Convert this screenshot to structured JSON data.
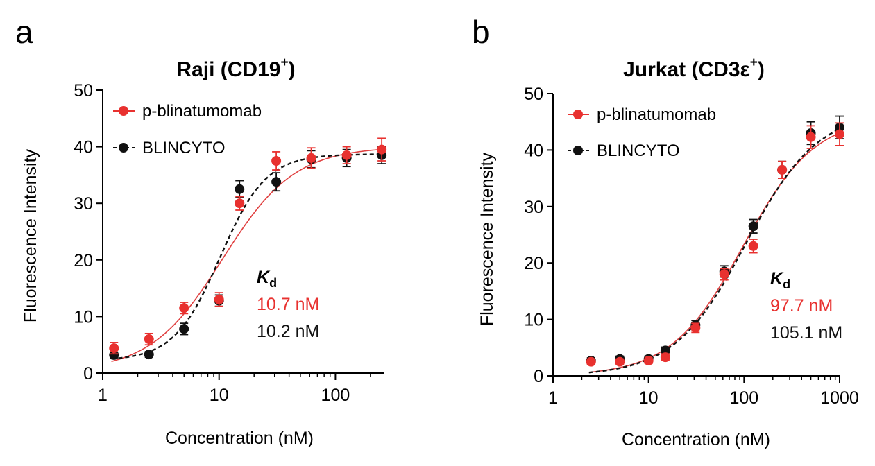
{
  "colors": {
    "red": "#e8312f",
    "black": "#111111",
    "curve_red": "#e04040"
  },
  "chart_data": [
    {
      "type": "scatter",
      "panel": "a",
      "title": "Raji (CD19",
      "title_sup": "+",
      "title_end": ")",
      "xlabel": "Concentration (nM)",
      "ylabel": "Fluorescence Intensity",
      "xscale": "log",
      "xlim": [
        1,
        260
      ],
      "ylim": [
        0,
        50
      ],
      "xticks": [
        1,
        10,
        100
      ],
      "xtick_labels": [
        "1",
        "10",
        "100"
      ],
      "yticks": [
        0,
        10,
        20,
        30,
        40,
        50
      ],
      "ytick_labels": [
        "0",
        "10",
        "20",
        "30",
        "40",
        "50"
      ],
      "legend_position": "top-left",
      "kd_label": "K",
      "kd_sub": "d",
      "series": [
        {
          "name": "p-blinatumomab",
          "color": "#e8312f",
          "line_style": "solid",
          "kd": 10.7,
          "kd_text": "10.7 nM",
          "top": 40,
          "bottom": 0.3,
          "hill": 1.4,
          "x": [
            1.25,
            2.5,
            5,
            10,
            15,
            31,
            62,
            125,
            250
          ],
          "y": [
            4.4,
            6.0,
            11.5,
            13.0,
            30.0,
            37.5,
            38.0,
            38.5,
            39.5
          ],
          "err": [
            1.0,
            1.0,
            1.0,
            1.2,
            1.2,
            1.6,
            1.8,
            1.5,
            2.0
          ]
        },
        {
          "name": "BLINCYTO",
          "color": "#111111",
          "line_style": "dashed",
          "kd": 10.2,
          "kd_text": "10.2 nM",
          "top": 38.7,
          "bottom": 2.2,
          "hill": 2.2,
          "x": [
            1.25,
            2.5,
            5,
            10,
            15,
            31,
            62,
            125,
            250
          ],
          "y": [
            3.2,
            3.3,
            7.8,
            12.8,
            32.5,
            33.8,
            37.8,
            38.0,
            38.5
          ],
          "err": [
            0.5,
            0.5,
            1.0,
            1.0,
            1.5,
            1.6,
            1.5,
            1.5,
            1.5
          ]
        }
      ]
    },
    {
      "type": "scatter",
      "panel": "b",
      "title": "Jurkat (CD3ε",
      "title_sup": "+",
      "title_end": ")",
      "xlabel": "Concentration (nM)",
      "ylabel": "Fluorescence Intensity",
      "xscale": "log",
      "xlim": [
        1,
        1000
      ],
      "ylim": [
        0,
        50
      ],
      "xticks": [
        1,
        10,
        100,
        1000
      ],
      "xtick_labels": [
        "1",
        "10",
        "100",
        "1000"
      ],
      "yticks": [
        0,
        10,
        20,
        30,
        40,
        50
      ],
      "ytick_labels": [
        "0",
        "10",
        "20",
        "30",
        "40",
        "50"
      ],
      "legend_position": "top-left",
      "kd_label": "K",
      "kd_sub": "d",
      "series": [
        {
          "name": "p-blinatumomab",
          "color": "#e8312f",
          "line_style": "solid",
          "kd": 97.7,
          "kd_text": "97.7 nM",
          "top": 46,
          "bottom": 0,
          "hill": 1.15,
          "x": [
            2.5,
            5,
            10,
            15,
            31,
            62,
            125,
            250,
            500,
            1000
          ],
          "y": [
            2.5,
            2.5,
            2.7,
            3.3,
            8.5,
            18.0,
            23.0,
            36.5,
            42.3,
            42.8
          ],
          "err": [
            0.5,
            0.5,
            0.5,
            0.6,
            0.8,
            1.0,
            1.2,
            1.5,
            2.0,
            2.0
          ]
        },
        {
          "name": "BLINCYTO",
          "color": "#111111",
          "line_style": "dashed",
          "kd": 105.1,
          "kd_text": "105.1 nM",
          "top": 47,
          "bottom": 0,
          "hill": 1.15,
          "x": [
            2.5,
            5,
            10,
            15,
            31,
            62,
            125,
            250,
            500,
            1000
          ],
          "y": [
            2.7,
            3.0,
            3.0,
            4.5,
            9.0,
            18.5,
            26.5,
            36.5,
            43.0,
            44.0
          ],
          "err": [
            0.5,
            0.5,
            0.5,
            0.6,
            0.8,
            1.0,
            1.2,
            1.5,
            2.0,
            2.0
          ]
        }
      ]
    }
  ]
}
